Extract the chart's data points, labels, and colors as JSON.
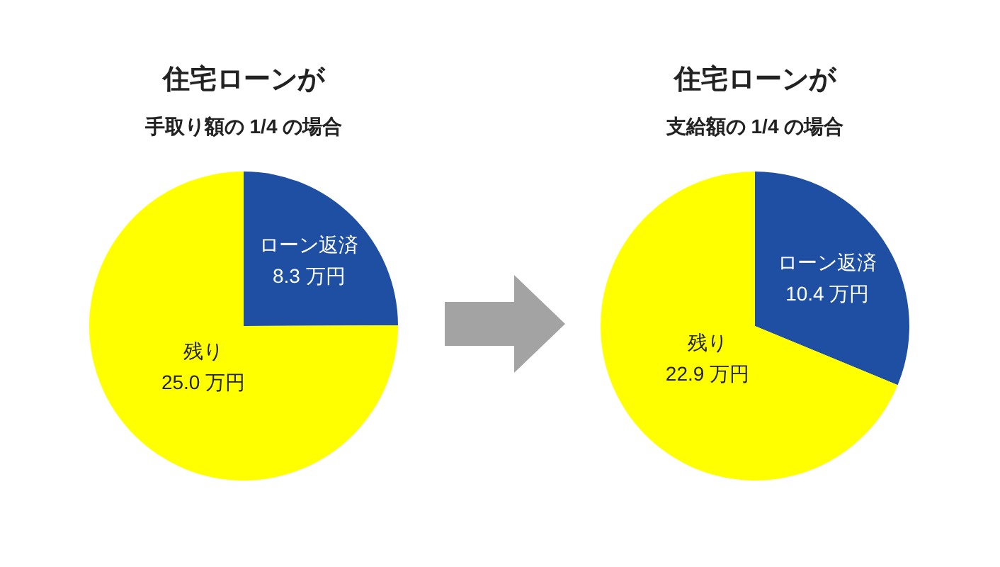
{
  "chart_data": [
    {
      "type": "pie",
      "title": "住宅ローンが",
      "subtitle": "手取り額の 1/4 の場合",
      "categories": [
        "ローン返済",
        "残り"
      ],
      "values": [
        8.3,
        25.0
      ],
      "colors": [
        "#1f4fa3",
        "#ffff00"
      ],
      "value_labels": [
        "8.3 万円",
        "25.0 万円"
      ],
      "legend": false
    },
    {
      "type": "pie",
      "title": "住宅ローンが",
      "subtitle": "支給額の 1/4 の場合",
      "categories": [
        "ローン返済",
        "残り"
      ],
      "values": [
        10.4,
        22.9
      ],
      "colors": [
        "#1f4fa3",
        "#ffff00"
      ],
      "value_labels": [
        "10.4 万円",
        "22.9 万円"
      ],
      "legend": false
    }
  ]
}
